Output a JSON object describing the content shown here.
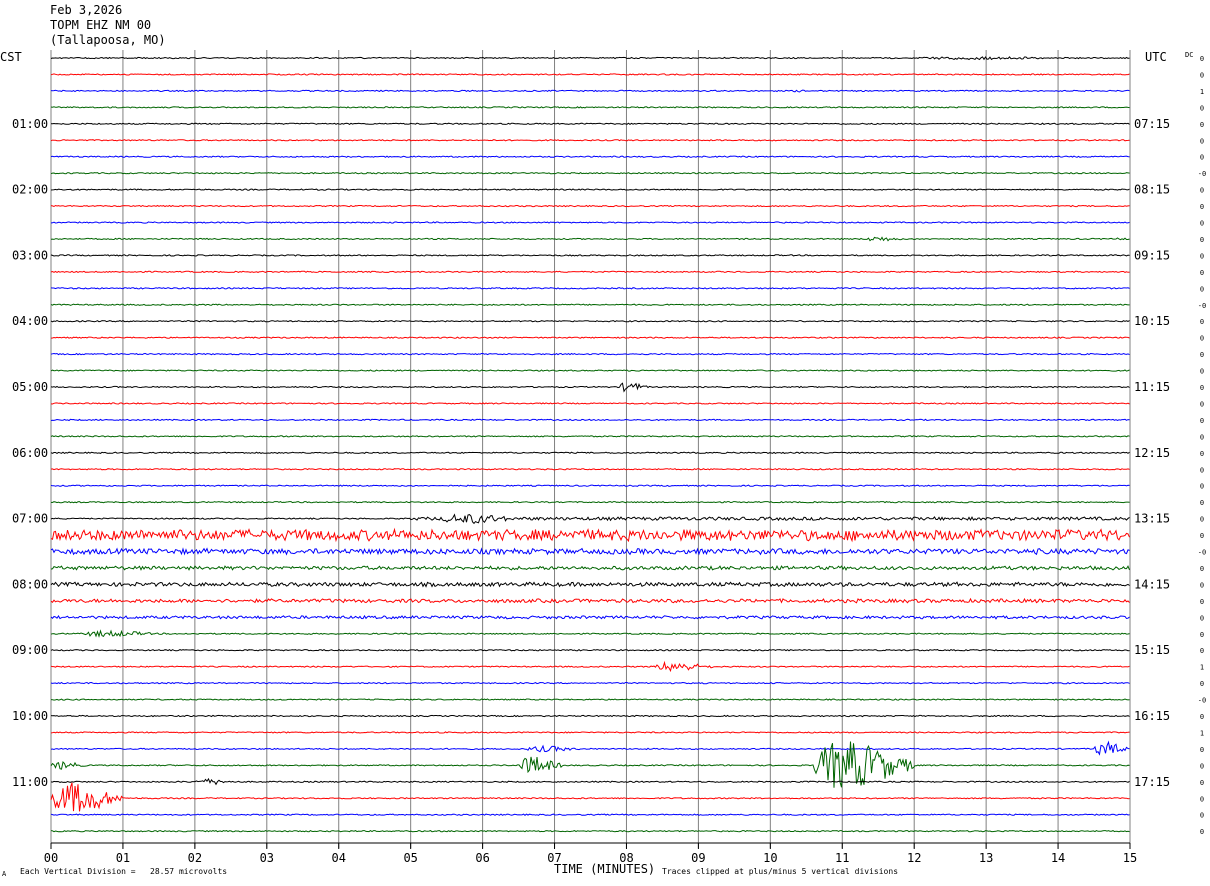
{
  "header": {
    "date": "Feb 3,2026",
    "station": "TOPM EHZ NM 00",
    "location": "(Tallapoosa, MO)"
  },
  "left_timezone": "CST",
  "right_timezone": "UTC",
  "dc_label": "DC",
  "footer": {
    "scale_note": "Each Vertical Division =   28.57 microvolts",
    "x_axis_title": "TIME (MINUTES)",
    "clip_note": "Traces clipped at plus/minus 5 vertical divisions",
    "corner_mark": "A"
  },
  "colors": {
    "traces": [
      "#000000",
      "#ff0000",
      "#0000ff",
      "#006400"
    ],
    "grid": "#808080"
  },
  "chart_data": {
    "type": "line",
    "description_of_plot": "helicorder",
    "x_range_minutes": [
      0,
      15
    ],
    "x_tick_labels": [
      "00",
      "01",
      "02",
      "03",
      "04",
      "05",
      "06",
      "07",
      "08",
      "09",
      "10",
      "11",
      "12",
      "13",
      "14",
      "15"
    ],
    "lines_per_hour": 4,
    "line_count": 48,
    "left_hour_labels": [
      "01:00",
      "02:00",
      "03:00",
      "04:00",
      "05:00",
      "06:00",
      "07:00",
      "08:00",
      "09:00",
      "10:00",
      "11:00"
    ],
    "right_hour_labels": [
      "07:15",
      "08:15",
      "09:15",
      "10:15",
      "11:15",
      "12:15",
      "13:15",
      "14:15",
      "15:15",
      "16:15",
      "17:15"
    ],
    "dc_offsets": [
      "0",
      "0",
      "1",
      "0",
      "0",
      "0",
      "0",
      "-0",
      "0",
      "0",
      "0",
      "0",
      "0",
      "0",
      "0",
      "-0",
      "0",
      "0",
      "0",
      "0",
      "0",
      "0",
      "0",
      "0",
      "0",
      "0",
      "0",
      "0",
      "0",
      "0",
      "-0",
      "0",
      "0",
      "0",
      "0",
      "0",
      "0",
      "1",
      "0",
      "-0",
      "0",
      "1",
      "0",
      "0",
      "0",
      "0",
      "0",
      "0"
    ],
    "events": [
      {
        "line": 0,
        "start_min": 12.0,
        "end_min": 14.5,
        "amplitude": 1.5
      },
      {
        "line": 2,
        "start_min": 10.3,
        "end_min": 10.6,
        "amplitude": 1.2
      },
      {
        "line": 11,
        "start_min": 11.3,
        "end_min": 11.9,
        "amplitude": 2.5
      },
      {
        "line": 11,
        "start_min": 14.8,
        "end_min": 15.0,
        "amplitude": 1.5
      },
      {
        "line": 20,
        "start_min": 7.9,
        "end_min": 8.3,
        "amplitude": 5
      },
      {
        "line": 28,
        "start_min": 5.0,
        "end_min": 15.0,
        "amplitude": 1.8
      },
      {
        "line": 28,
        "start_min": 5.4,
        "end_min": 6.6,
        "amplitude": 5
      },
      {
        "line": 29,
        "start_min": 0.0,
        "end_min": 15.0,
        "amplitude": 6
      },
      {
        "line": 30,
        "start_min": 0.0,
        "end_min": 15.0,
        "amplitude": 3
      },
      {
        "line": 31,
        "start_min": 0.0,
        "end_min": 15.0,
        "amplitude": 2
      },
      {
        "line": 32,
        "start_min": 0.0,
        "end_min": 15.0,
        "amplitude": 2.2
      },
      {
        "line": 33,
        "start_min": 0.0,
        "end_min": 15.0,
        "amplitude": 2
      },
      {
        "line": 34,
        "start_min": 0.0,
        "end_min": 15.0,
        "amplitude": 1.6
      },
      {
        "line": 35,
        "start_min": 0.4,
        "end_min": 1.6,
        "amplitude": 3
      },
      {
        "line": 37,
        "start_min": 8.4,
        "end_min": 9.2,
        "amplitude": 5
      },
      {
        "line": 42,
        "start_min": 6.6,
        "end_min": 7.4,
        "amplitude": 3
      },
      {
        "line": 42,
        "start_min": 14.5,
        "end_min": 15.0,
        "amplitude": 7
      },
      {
        "line": 43,
        "start_min": 0.0,
        "end_min": 0.5,
        "amplitude": 4
      },
      {
        "line": 43,
        "start_min": 6.5,
        "end_min": 7.1,
        "amplitude": 9
      },
      {
        "line": 43,
        "start_min": 10.6,
        "end_min": 12.0,
        "amplitude": 25
      },
      {
        "line": 44,
        "start_min": 2.0,
        "end_min": 2.6,
        "amplitude": 3
      },
      {
        "line": 45,
        "start_min": 0.0,
        "end_min": 1.0,
        "amplitude": 16
      }
    ],
    "clip_divisions": 5
  }
}
